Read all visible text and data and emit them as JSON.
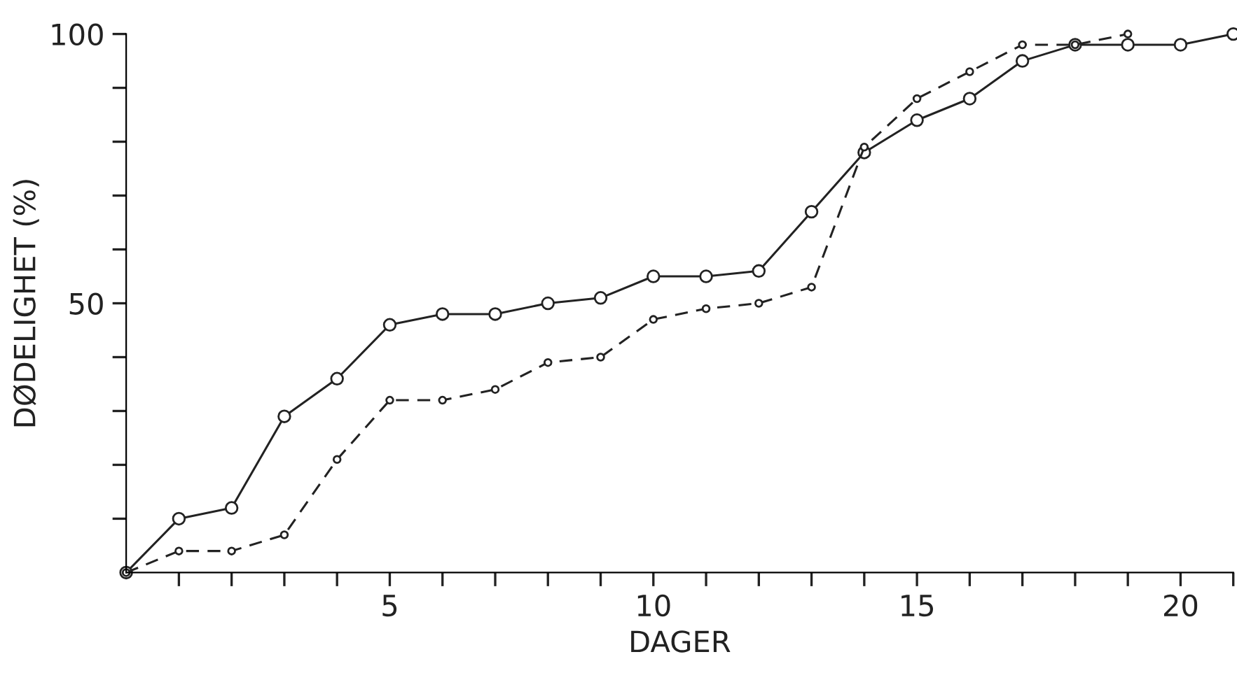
{
  "chart_data": {
    "type": "line",
    "xlabel": "DAGER",
    "ylabel": "DØDELIGHET (%)",
    "xlim": [
      0,
      21
    ],
    "ylim": [
      0,
      100
    ],
    "xticks": [
      {
        "value": 1,
        "label": null
      },
      {
        "value": 2,
        "label": null
      },
      {
        "value": 3,
        "label": null
      },
      {
        "value": 4,
        "label": null
      },
      5,
      {
        "value": 6,
        "label": null
      },
      {
        "value": 7,
        "label": null
      },
      {
        "value": 8,
        "label": null
      },
      {
        "value": 9,
        "label": null
      },
      10,
      {
        "value": 11,
        "label": null
      },
      {
        "value": 12,
        "label": null
      },
      {
        "value": 13,
        "label": null
      },
      {
        "value": 14,
        "label": null
      },
      15,
      {
        "value": 16,
        "label": null
      },
      {
        "value": 17,
        "label": null
      },
      {
        "value": 18,
        "label": null
      },
      {
        "value": 19,
        "label": null
      },
      20,
      {
        "value": 21,
        "label": null
      }
    ],
    "yticks": [
      {
        "value": 10,
        "label": null
      },
      {
        "value": 20,
        "label": null
      },
      {
        "value": 30,
        "label": null
      },
      {
        "value": 40,
        "label": null
      },
      50,
      {
        "value": 60,
        "label": null
      },
      {
        "value": 70,
        "label": null
      },
      {
        "value": 80,
        "label": null
      },
      {
        "value": 90,
        "label": null
      },
      100
    ],
    "grid": false,
    "legend": false,
    "marker": "circle",
    "series": [
      {
        "color": "#222222",
        "line_style": "solid",
        "x": [
          0,
          1,
          2,
          3,
          4,
          5,
          6,
          7,
          8,
          9,
          10,
          11,
          12,
          13,
          14,
          15,
          16,
          17,
          18,
          19,
          20,
          21
        ],
        "values": [
          0,
          10,
          12,
          29,
          36,
          46,
          48,
          48,
          50,
          51,
          55,
          55,
          56,
          67,
          78,
          84,
          88,
          95,
          98,
          98,
          98,
          100
        ]
      },
      {
        "color": "#222222",
        "line_style": "dashed",
        "x": [
          0,
          1,
          2,
          3,
          4,
          5,
          6,
          7,
          8,
          9,
          10,
          11,
          12,
          13,
          14,
          15,
          16,
          17,
          18,
          19
        ],
        "values": [
          0,
          4,
          4,
          7,
          21,
          32,
          32,
          34,
          39,
          40,
          47,
          49,
          50,
          53,
          79,
          88,
          93,
          98,
          98,
          100
        ]
      }
    ]
  }
}
